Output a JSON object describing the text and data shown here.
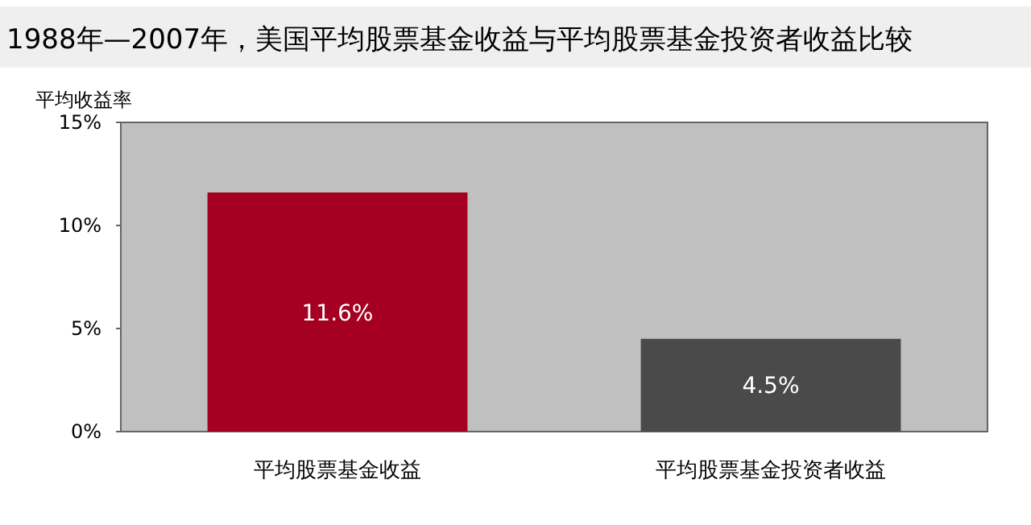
{
  "chart_data": {
    "type": "bar",
    "title": "1988年—2007年，美国平均股票基金收益与平均股票基金投资者收益比较",
    "ylabel": "平均收益率",
    "categories": [
      "平均股票基金收益",
      "平均股票基金投资者收益"
    ],
    "values": [
      11.6,
      4.5
    ],
    "colors": [
      "#a50021",
      "#4a4a4a"
    ],
    "value_labels": [
      "11.6%",
      "4.5%"
    ],
    "ylim": [
      0,
      15
    ],
    "yticks": [
      {
        "value": 0,
        "label": "0%"
      },
      {
        "value": 5,
        "label": "5%"
      },
      {
        "value": 10,
        "label": "10%"
      },
      {
        "value": 15,
        "label": "15%"
      }
    ],
    "grid": false
  }
}
